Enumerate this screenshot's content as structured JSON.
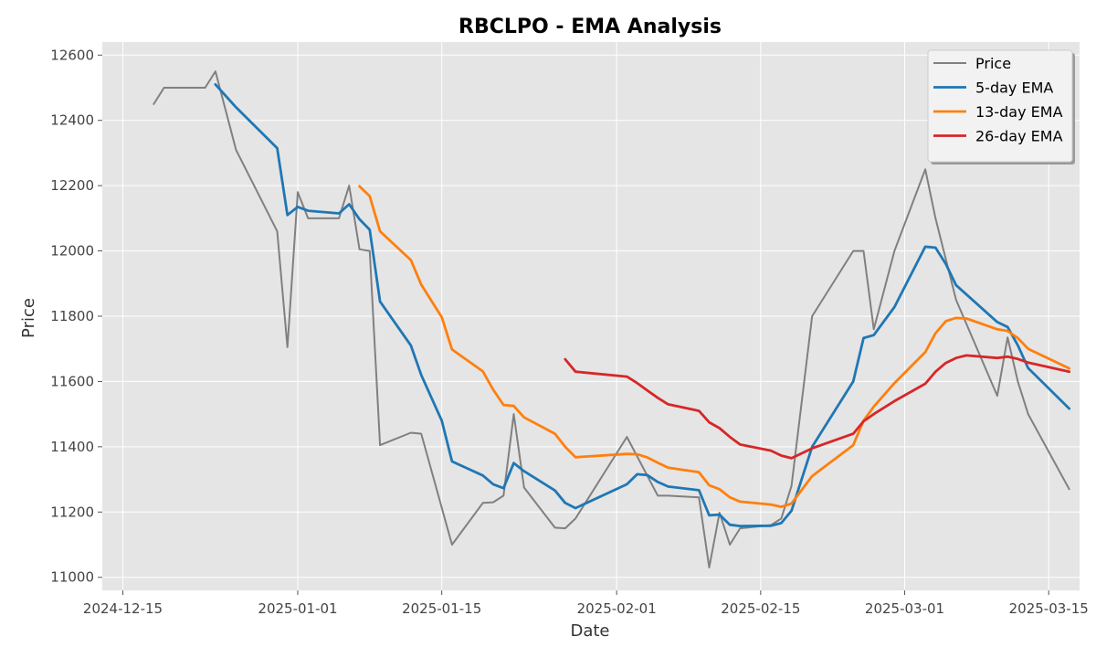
{
  "chart_data": {
    "type": "line",
    "title": "RBCLPO - EMA Analysis",
    "xlabel": "Date",
    "ylabel": "Price",
    "grid": true,
    "legend_placement": "top-right",
    "xlim": [
      "2024-12-13",
      "2025-03-18"
    ],
    "ylim": [
      10960,
      12640
    ],
    "x_ticks": [
      "2024-12-15",
      "2025-01-01",
      "2025-01-15",
      "2025-02-01",
      "2025-02-15",
      "2025-03-01",
      "2025-03-15"
    ],
    "y_ticks": [
      11000,
      11200,
      11400,
      11600,
      11800,
      12000,
      12200,
      12400,
      12600
    ],
    "series": [
      {
        "name": "Price",
        "color": "#808080",
        "points": [
          [
            "2024-12-18",
            12450
          ],
          [
            "2024-12-19",
            12500
          ],
          [
            "2024-12-22",
            12500
          ],
          [
            "2024-12-23",
            12500
          ],
          [
            "2024-12-24",
            12550
          ],
          [
            "2024-12-26",
            12310
          ],
          [
            "2024-12-30",
            12060
          ],
          [
            "2024-12-31",
            11705
          ],
          [
            "2025-01-01",
            12180
          ],
          [
            "2025-01-02",
            12100
          ],
          [
            "2025-01-05",
            12100
          ],
          [
            "2025-01-06",
            12200
          ],
          [
            "2025-01-07",
            12005
          ],
          [
            "2025-01-08",
            12000
          ],
          [
            "2025-01-09",
            11405
          ],
          [
            "2025-01-12",
            11443
          ],
          [
            "2025-01-13",
            11440
          ],
          [
            "2025-01-16",
            11100
          ],
          [
            "2025-01-19",
            11228
          ],
          [
            "2025-01-20",
            11230
          ],
          [
            "2025-01-21",
            11250
          ],
          [
            "2025-01-22",
            11500
          ],
          [
            "2025-01-23",
            11275
          ],
          [
            "2025-01-26",
            11152
          ],
          [
            "2025-01-27",
            11150
          ],
          [
            "2025-01-28",
            11180
          ],
          [
            "2025-02-02",
            11430
          ],
          [
            "2025-02-05",
            11250
          ],
          [
            "2025-02-06",
            11250
          ],
          [
            "2025-02-09",
            11245
          ],
          [
            "2025-02-10",
            11030
          ],
          [
            "2025-02-11",
            11198
          ],
          [
            "2025-02-12",
            11100
          ],
          [
            "2025-02-13",
            11150
          ],
          [
            "2025-02-16",
            11160
          ],
          [
            "2025-02-17",
            11180
          ],
          [
            "2025-02-18",
            11280
          ],
          [
            "2025-02-20",
            11800
          ],
          [
            "2025-02-24",
            12000
          ],
          [
            "2025-02-25",
            12000
          ],
          [
            "2025-02-26",
            11760
          ],
          [
            "2025-02-28",
            12000
          ],
          [
            "2025-03-03",
            12250
          ],
          [
            "2025-03-04",
            12100
          ],
          [
            "2025-03-06",
            11850
          ],
          [
            "2025-03-10",
            11556
          ],
          [
            "2025-03-11",
            11735
          ],
          [
            "2025-03-12",
            11600
          ],
          [
            "2025-03-13",
            11500
          ],
          [
            "2025-03-17",
            11270
          ]
        ]
      },
      {
        "name": "5-day EMA",
        "color": "#1f77b4",
        "points": [
          [
            "2024-12-24",
            12510
          ],
          [
            "2024-12-26",
            12440
          ],
          [
            "2024-12-30",
            12315
          ],
          [
            "2024-12-31",
            12110
          ],
          [
            "2025-01-01",
            12135
          ],
          [
            "2025-01-02",
            12123
          ],
          [
            "2025-01-05",
            12115
          ],
          [
            "2025-01-06",
            12143
          ],
          [
            "2025-01-07",
            12097
          ],
          [
            "2025-01-08",
            12065
          ],
          [
            "2025-01-09",
            11845
          ],
          [
            "2025-01-12",
            11710
          ],
          [
            "2025-01-13",
            11620
          ],
          [
            "2025-01-15",
            11480
          ],
          [
            "2025-01-16",
            11355
          ],
          [
            "2025-01-19",
            11312
          ],
          [
            "2025-01-20",
            11285
          ],
          [
            "2025-01-21",
            11273
          ],
          [
            "2025-01-22",
            11350
          ],
          [
            "2025-01-23",
            11325
          ],
          [
            "2025-01-26",
            11266
          ],
          [
            "2025-01-27",
            11228
          ],
          [
            "2025-01-28",
            11212
          ],
          [
            "2025-02-02",
            11285
          ],
          [
            "2025-02-03",
            11316
          ],
          [
            "2025-02-04",
            11313
          ],
          [
            "2025-02-05",
            11292
          ],
          [
            "2025-02-06",
            11278
          ],
          [
            "2025-02-09",
            11267
          ],
          [
            "2025-02-10",
            11190
          ],
          [
            "2025-02-11",
            11192
          ],
          [
            "2025-02-12",
            11161
          ],
          [
            "2025-02-13",
            11157
          ],
          [
            "2025-02-16",
            11158
          ],
          [
            "2025-02-17",
            11166
          ],
          [
            "2025-02-18",
            11204
          ],
          [
            "2025-02-20",
            11400
          ],
          [
            "2025-02-24",
            11600
          ],
          [
            "2025-02-25",
            11733
          ],
          [
            "2025-02-26",
            11742
          ],
          [
            "2025-02-28",
            11828
          ],
          [
            "2025-03-03",
            12013
          ],
          [
            "2025-03-04",
            12010
          ],
          [
            "2025-03-05",
            11960
          ],
          [
            "2025-03-06",
            11895
          ],
          [
            "2025-03-10",
            11782
          ],
          [
            "2025-03-11",
            11767
          ],
          [
            "2025-03-12",
            11711
          ],
          [
            "2025-03-13",
            11641
          ],
          [
            "2025-03-17",
            11517
          ]
        ]
      },
      {
        "name": "13-day EMA",
        "color": "#ff7f0e",
        "points": [
          [
            "2025-01-07",
            12198
          ],
          [
            "2025-01-08",
            12168
          ],
          [
            "2025-01-09",
            12060
          ],
          [
            "2025-01-12",
            11972
          ],
          [
            "2025-01-13",
            11897
          ],
          [
            "2025-01-15",
            11797
          ],
          [
            "2025-01-16",
            11698
          ],
          [
            "2025-01-19",
            11631
          ],
          [
            "2025-01-20",
            11575
          ],
          [
            "2025-01-21",
            11528
          ],
          [
            "2025-01-22",
            11525
          ],
          [
            "2025-01-23",
            11490
          ],
          [
            "2025-01-26",
            11440
          ],
          [
            "2025-01-27",
            11400
          ],
          [
            "2025-01-28",
            11368
          ],
          [
            "2025-02-02",
            11378
          ],
          [
            "2025-02-03",
            11377
          ],
          [
            "2025-02-04",
            11367
          ],
          [
            "2025-02-05",
            11351
          ],
          [
            "2025-02-06",
            11336
          ],
          [
            "2025-02-09",
            11322
          ],
          [
            "2025-02-10",
            11282
          ],
          [
            "2025-02-11",
            11270
          ],
          [
            "2025-02-12",
            11245
          ],
          [
            "2025-02-13",
            11232
          ],
          [
            "2025-02-16",
            11223
          ],
          [
            "2025-02-17",
            11216
          ],
          [
            "2025-02-18",
            11226
          ],
          [
            "2025-02-20",
            11310
          ],
          [
            "2025-02-24",
            11405
          ],
          [
            "2025-02-25",
            11480
          ],
          [
            "2025-02-26",
            11523
          ],
          [
            "2025-02-28",
            11595
          ],
          [
            "2025-03-03",
            11690
          ],
          [
            "2025-03-04",
            11748
          ],
          [
            "2025-03-05",
            11785
          ],
          [
            "2025-03-06",
            11795
          ],
          [
            "2025-03-07",
            11793
          ],
          [
            "2025-03-10",
            11760
          ],
          [
            "2025-03-11",
            11755
          ],
          [
            "2025-03-12",
            11733
          ],
          [
            "2025-03-13",
            11700
          ],
          [
            "2025-03-17",
            11640
          ]
        ]
      },
      {
        "name": "26-day EMA",
        "color": "#d62728",
        "points": [
          [
            "2025-01-27",
            11668
          ],
          [
            "2025-01-28",
            11630
          ],
          [
            "2025-02-02",
            11615
          ],
          [
            "2025-02-03",
            11595
          ],
          [
            "2025-02-04",
            11572
          ],
          [
            "2025-02-05",
            11550
          ],
          [
            "2025-02-06",
            11530
          ],
          [
            "2025-02-09",
            11510
          ],
          [
            "2025-02-10",
            11475
          ],
          [
            "2025-02-11",
            11457
          ],
          [
            "2025-02-12",
            11430
          ],
          [
            "2025-02-13",
            11407
          ],
          [
            "2025-02-16",
            11388
          ],
          [
            "2025-02-17",
            11373
          ],
          [
            "2025-02-18",
            11365
          ],
          [
            "2025-02-20",
            11395
          ],
          [
            "2025-02-24",
            11440
          ],
          [
            "2025-02-25",
            11478
          ],
          [
            "2025-02-26",
            11500
          ],
          [
            "2025-02-28",
            11540
          ],
          [
            "2025-03-03",
            11593
          ],
          [
            "2025-03-04",
            11630
          ],
          [
            "2025-03-05",
            11657
          ],
          [
            "2025-03-06",
            11672
          ],
          [
            "2025-03-07",
            11680
          ],
          [
            "2025-03-10",
            11672
          ],
          [
            "2025-03-11",
            11676
          ],
          [
            "2025-03-12",
            11669
          ],
          [
            "2025-03-13",
            11658
          ],
          [
            "2025-03-17",
            11630
          ]
        ]
      }
    ]
  }
}
